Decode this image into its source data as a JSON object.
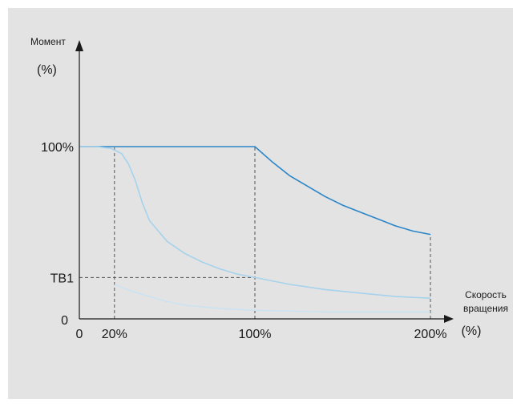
{
  "colors": {
    "background": "#e3e3e3",
    "axis": "#1a1a1a",
    "main_curve": "#2a86c8",
    "light_curve": "#a6d2ec",
    "lighter_curve": "#c7e3f3",
    "guide": "#555555"
  },
  "chart_data": {
    "type": "line",
    "ylabel": "Момент",
    "ylabel_unit": "(%)",
    "xlabel": "Скорость вращения",
    "xlabel_line1": "Скорость",
    "xlabel_line2": "вращения",
    "xlabel_unit": "(%)",
    "xlim": [
      0,
      200
    ],
    "ylim": [
      0,
      100
    ],
    "x_origin_label": "0",
    "y_origin_label": "0",
    "x_ticks": [
      {
        "value": 20,
        "label": "20%"
      },
      {
        "value": 100,
        "label": "100%"
      },
      {
        "value": 200,
        "label": "200%"
      }
    ],
    "y_ticks": [
      {
        "value": 100,
        "label": "100%"
      },
      {
        "value": 24,
        "label": "ТВ1"
      }
    ],
    "guides": [
      {
        "x": 20,
        "y": 100
      },
      {
        "x": 100,
        "y": 100
      },
      {
        "x": 200,
        "y": 49
      },
      {
        "x": 100,
        "y": 24
      }
    ],
    "series": [
      {
        "style": "main",
        "x": [
          0,
          20,
          40,
          60,
          80,
          100,
          110,
          120,
          130,
          140,
          150,
          160,
          170,
          180,
          190,
          200
        ],
        "y": [
          100,
          100,
          100,
          100,
          100,
          100,
          91,
          83,
          77,
          71,
          66,
          62,
          58,
          54,
          51,
          49
        ]
      },
      {
        "style": "light",
        "x": [
          0,
          10,
          18,
          24,
          28,
          32,
          36,
          40,
          50,
          60,
          70,
          80,
          90,
          100,
          120,
          140,
          160,
          180,
          200
        ],
        "y": [
          100,
          100,
          99,
          96,
          90,
          80,
          67,
          57,
          45,
          38,
          33,
          29,
          26,
          24,
          20,
          17,
          15,
          13,
          12
        ]
      },
      {
        "style": "lighter",
        "x": [
          20,
          30,
          40,
          50,
          60,
          80,
          100,
          120,
          140,
          160,
          180,
          200
        ],
        "y": [
          20,
          16,
          13,
          10,
          8,
          6,
          5,
          4.5,
          4,
          4,
          4,
          4
        ]
      }
    ]
  }
}
